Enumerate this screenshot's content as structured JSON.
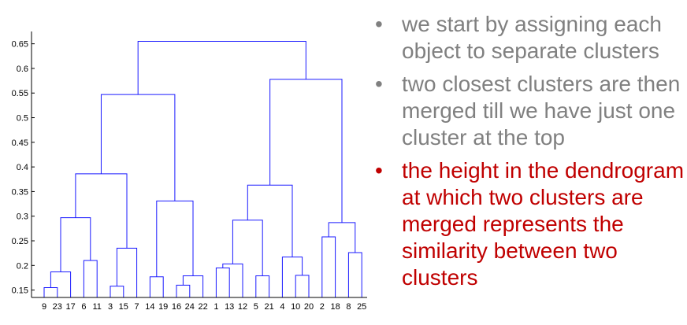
{
  "chart_data": {
    "type": "dendrogram",
    "y_ticks": [
      "0.15",
      "0.2",
      "0.25",
      "0.3",
      "0.35",
      "0.4",
      "0.45",
      "0.5",
      "0.55",
      "0.6",
      "0.65"
    ],
    "ylim": [
      0.135,
      0.675
    ],
    "leaf_labels": [
      "9",
      "23",
      "17",
      "6",
      "11",
      "3",
      "15",
      "7",
      "14",
      "19",
      "16",
      "24",
      "22",
      "1",
      "13",
      "12",
      "5",
      "21",
      "4",
      "10",
      "20",
      "2",
      "18",
      "8",
      "25"
    ],
    "merges": [
      {
        "a": "L0",
        "b": "L1",
        "h": 0.155
      },
      {
        "a": "M0",
        "b": "L2",
        "h": 0.187
      },
      {
        "a": "L3",
        "b": "L4",
        "h": 0.21
      },
      {
        "a": "M1",
        "b": "M2",
        "h": 0.297
      },
      {
        "a": "L5",
        "b": "L6",
        "h": 0.158
      },
      {
        "a": "M4",
        "b": "L7",
        "h": 0.235
      },
      {
        "a": "M3",
        "b": "M5",
        "h": 0.386
      },
      {
        "a": "L10",
        "b": "L11",
        "h": 0.16
      },
      {
        "a": "M7",
        "b": "L12",
        "h": 0.179
      },
      {
        "a": "L8",
        "b": "L9",
        "h": 0.177
      },
      {
        "a": "M9",
        "b": "M8",
        "h": 0.331
      },
      {
        "a": "M6",
        "b": "M10",
        "h": 0.547
      },
      {
        "a": "L13",
        "b": "L14",
        "h": 0.195
      },
      {
        "a": "M12",
        "b": "L15",
        "h": 0.203
      },
      {
        "a": "L16",
        "b": "L17",
        "h": 0.179
      },
      {
        "a": "M13",
        "b": "M14",
        "h": 0.292
      },
      {
        "a": "L19",
        "b": "L20",
        "h": 0.18
      },
      {
        "a": "L18",
        "b": "M16",
        "h": 0.217
      },
      {
        "a": "M15",
        "b": "M17",
        "h": 0.363
      },
      {
        "a": "L21",
        "b": "L22",
        "h": 0.258
      },
      {
        "a": "L23",
        "b": "L24",
        "h": 0.226
      },
      {
        "a": "M19",
        "b": "M20",
        "h": 0.287
      },
      {
        "a": "M18",
        "b": "M21",
        "h": 0.578
      },
      {
        "a": "M11",
        "b": "M22",
        "h": 0.655
      }
    ],
    "colors": {
      "link": "#1a1aff",
      "axis": "#000000"
    }
  },
  "bullets": [
    {
      "text": "we start by assigning each object to separate clusters",
      "color": "#808080"
    },
    {
      "text": "two closest clusters are then merged till we have just one cluster at the top",
      "color": "#808080"
    },
    {
      "text": "the height in the dendrogram at which two clusters are merged represents the similarity between two clusters",
      "color": "#c00000"
    }
  ]
}
